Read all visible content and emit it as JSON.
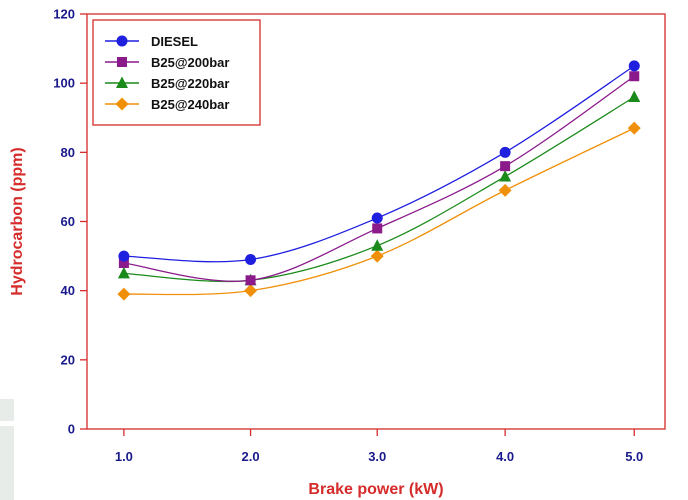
{
  "chart_data": {
    "type": "line",
    "xlabel": "Brake power (kW)",
    "ylabel": "Hydrocarbon (ppm)",
    "xlim": [
      0.75,
      5.45
    ],
    "ylim": [
      0,
      120
    ],
    "x_ticks": [
      {
        "value": 1.05,
        "label": "1.0"
      },
      {
        "value": 2.08,
        "label": "2.0"
      },
      {
        "value": 3.11,
        "label": "3.0"
      },
      {
        "value": 4.15,
        "label": "4.0"
      },
      {
        "value": 5.2,
        "label": "5.0"
      }
    ],
    "y_ticks": [
      0,
      20,
      40,
      60,
      80,
      100,
      120
    ],
    "grid": false,
    "legend_position": "top-left",
    "series": [
      {
        "name": "DIESEL",
        "color": "#1f1fe0",
        "marker": "circle",
        "x": [
          1.05,
          2.08,
          3.11,
          4.15,
          5.2
        ],
        "y": [
          50,
          49,
          61,
          80,
          105
        ]
      },
      {
        "name": "B25@200bar",
        "color": "#8b1a8b",
        "marker": "square",
        "x": [
          1.05,
          2.08,
          3.11,
          4.15,
          5.2
        ],
        "y": [
          48,
          43,
          58,
          76,
          102
        ]
      },
      {
        "name": "B25@220bar",
        "color": "#1a8a1a",
        "marker": "triangle",
        "x": [
          1.05,
          2.08,
          3.11,
          4.15,
          5.2
        ],
        "y": [
          45,
          43,
          53,
          73,
          96
        ]
      },
      {
        "name": "B25@240bar",
        "color": "#f0900a",
        "marker": "diamond",
        "x": [
          1.05,
          2.08,
          3.11,
          4.15,
          5.2
        ],
        "y": [
          39,
          40,
          50,
          69,
          87
        ]
      }
    ],
    "frame_color": "#d62b2b"
  }
}
